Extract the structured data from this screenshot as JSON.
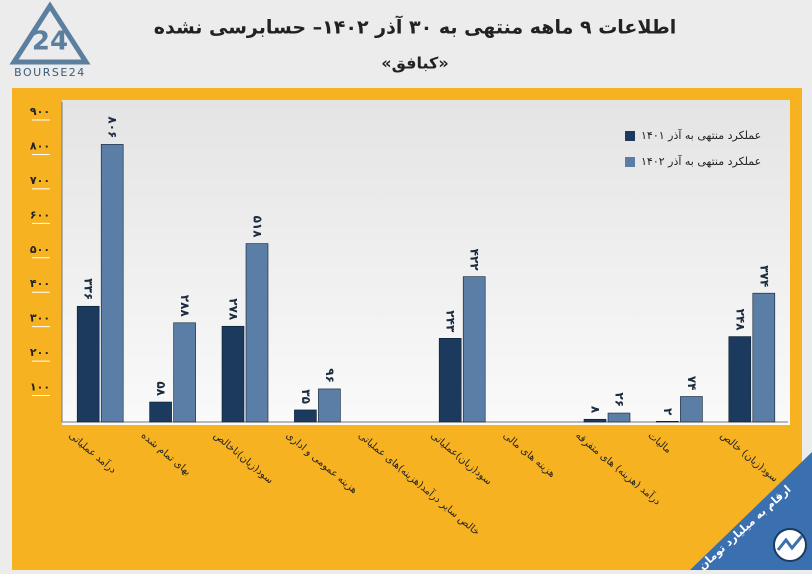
{
  "chart_data": {
    "type": "bar",
    "title": "اطلاعات ۹ ماهه منتهی به ۳۰ آذر ۱۴۰۲– حسابرسی نشده",
    "subtitle": "«کبافق»",
    "logo": "BOURSE24",
    "note": "ارقام به میلیارد تومان",
    "categories": [
      "درآمد عملیاتی",
      "بهای تمام شده",
      "سود(زیان)ناخالص",
      "هزینه عمومی و اداری",
      "خالص سایر درآمد(هزینه)های عملیاتی",
      "سود(زیان)عملیاتی",
      "هزینه های مالی",
      "درآمد (هزینه) های متفرقه",
      "مالیات",
      "سود(زیان) خالص"
    ],
    "series": [
      {
        "name": "عملکرد منتهی به آذر ۱۴۰۱",
        "color": "#1b3a5e",
        "values": [
          336,
          58,
          278,
          35,
          null,
          243,
          null,
          8,
          2,
          248
        ],
        "value_labels": [
          "۳۳۶",
          "۵۸",
          "۲۷۸",
          "۳۵",
          null,
          "۲۴۳",
          null,
          "۸",
          "۲",
          "۲۴۸"
        ]
      },
      {
        "name": "عملکرد منتهی به آذر ۱۴۰۲",
        "color": "#5b7ea6",
        "values": [
          806,
          288,
          518,
          96,
          null,
          422,
          null,
          26,
          74,
          374
        ],
        "value_labels": [
          "۸۰۶",
          "۲۸۸",
          "۵۱۸",
          "۹۶",
          null,
          "۴۲۲",
          null,
          "۲۶",
          "۷۴",
          "۳۷۴"
        ]
      }
    ],
    "ylim": [
      0,
      900
    ],
    "yticks": [
      {
        "value": 100,
        "label": "۱۰۰"
      },
      {
        "value": 200,
        "label": "۲۰۰"
      },
      {
        "value": 300,
        "label": "۳۰۰"
      },
      {
        "value": 400,
        "label": "۴۰۰"
      },
      {
        "value": 500,
        "label": "۵۰۰"
      },
      {
        "value": 600,
        "label": "۶۰۰"
      },
      {
        "value": 700,
        "label": "۷۰۰"
      },
      {
        "value": 800,
        "label": "۸۰۰"
      },
      {
        "value": 900,
        "label": "۹۰۰"
      }
    ],
    "grid": false,
    "legend": "top-right"
  }
}
